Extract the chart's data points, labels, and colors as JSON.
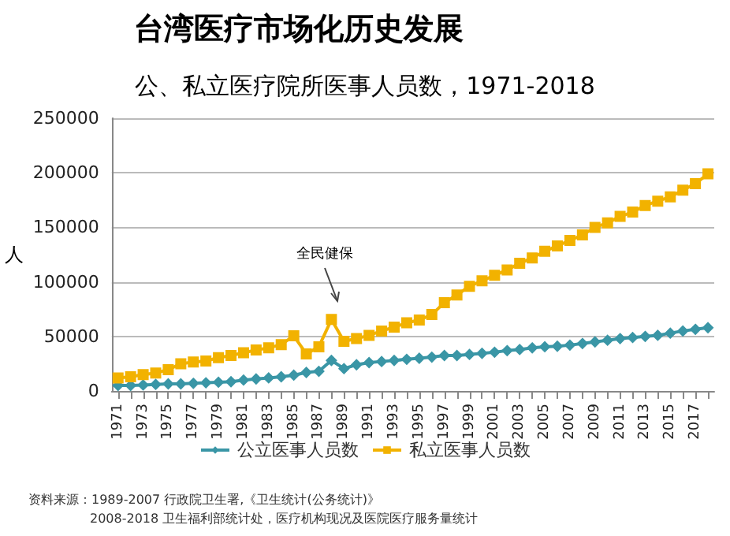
{
  "chart_data": {
    "type": "line",
    "title": "台湾医疗市场化历史发展",
    "subtitle": "公、私立医疗院所医事人员数，1971-2018",
    "ylabel": "人",
    "categories": [
      "1971",
      null,
      "1973",
      null,
      "1975",
      null,
      "1977",
      null,
      "1979",
      null,
      "1981",
      null,
      "1983",
      null,
      "1985",
      null,
      "1987",
      null,
      "1989",
      null,
      "1991",
      null,
      "1993",
      null,
      "1995",
      null,
      "1997",
      null,
      "1999",
      null,
      "2001",
      null,
      "2003",
      null,
      "2005",
      null,
      "2007",
      null,
      "2009",
      null,
      "2011",
      null,
      "2013",
      null,
      "2015",
      null,
      "2017",
      null
    ],
    "series": [
      {
        "name": "公立医事人员数",
        "color": "#3a96a6",
        "marker": "diamond",
        "values": [
          5000,
          5000,
          5500,
          6000,
          6500,
          6500,
          7000,
          7500,
          8000,
          8500,
          10000,
          11000,
          12000,
          13000,
          14500,
          17000,
          18000,
          28000,
          20500,
          24000,
          26000,
          27000,
          28000,
          29000,
          30000,
          31000,
          32500,
          32500,
          33500,
          34500,
          35500,
          37000,
          38000,
          39500,
          40500,
          41000,
          42000,
          43500,
          45000,
          46500,
          48000,
          49000,
          50000,
          51000,
          53000,
          55000,
          56500,
          58000
        ]
      },
      {
        "name": "私立医事人员数",
        "color": "#f2b200",
        "marker": "square",
        "values": [
          12000,
          13000,
          15000,
          16500,
          19500,
          25000,
          26500,
          27500,
          30500,
          32500,
          35000,
          37500,
          39500,
          42500,
          50500,
          34000,
          40500,
          65500,
          45500,
          48000,
          51000,
          55000,
          58500,
          62500,
          65000,
          70000,
          81000,
          88000,
          96000,
          101000,
          106000,
          111000,
          117000,
          122000,
          128000,
          133000,
          138000,
          143000,
          150000,
          154000,
          160000,
          164000,
          170000,
          174000,
          178000,
          184000,
          190000,
          199000
        ]
      }
    ],
    "ylim": [
      0,
      250000
    ],
    "yticks": [
      0,
      50000,
      100000,
      150000,
      200000,
      250000
    ],
    "grid": "y",
    "legend": "bottom",
    "annotations": [
      "全民健保",
      "资料来源：1989-2007 行政院卫生署,《卫生统计(公务统计)》",
      "2008-2018 卫生福利部统计处，医疗机构现况及医院医疗服务量统计"
    ]
  }
}
